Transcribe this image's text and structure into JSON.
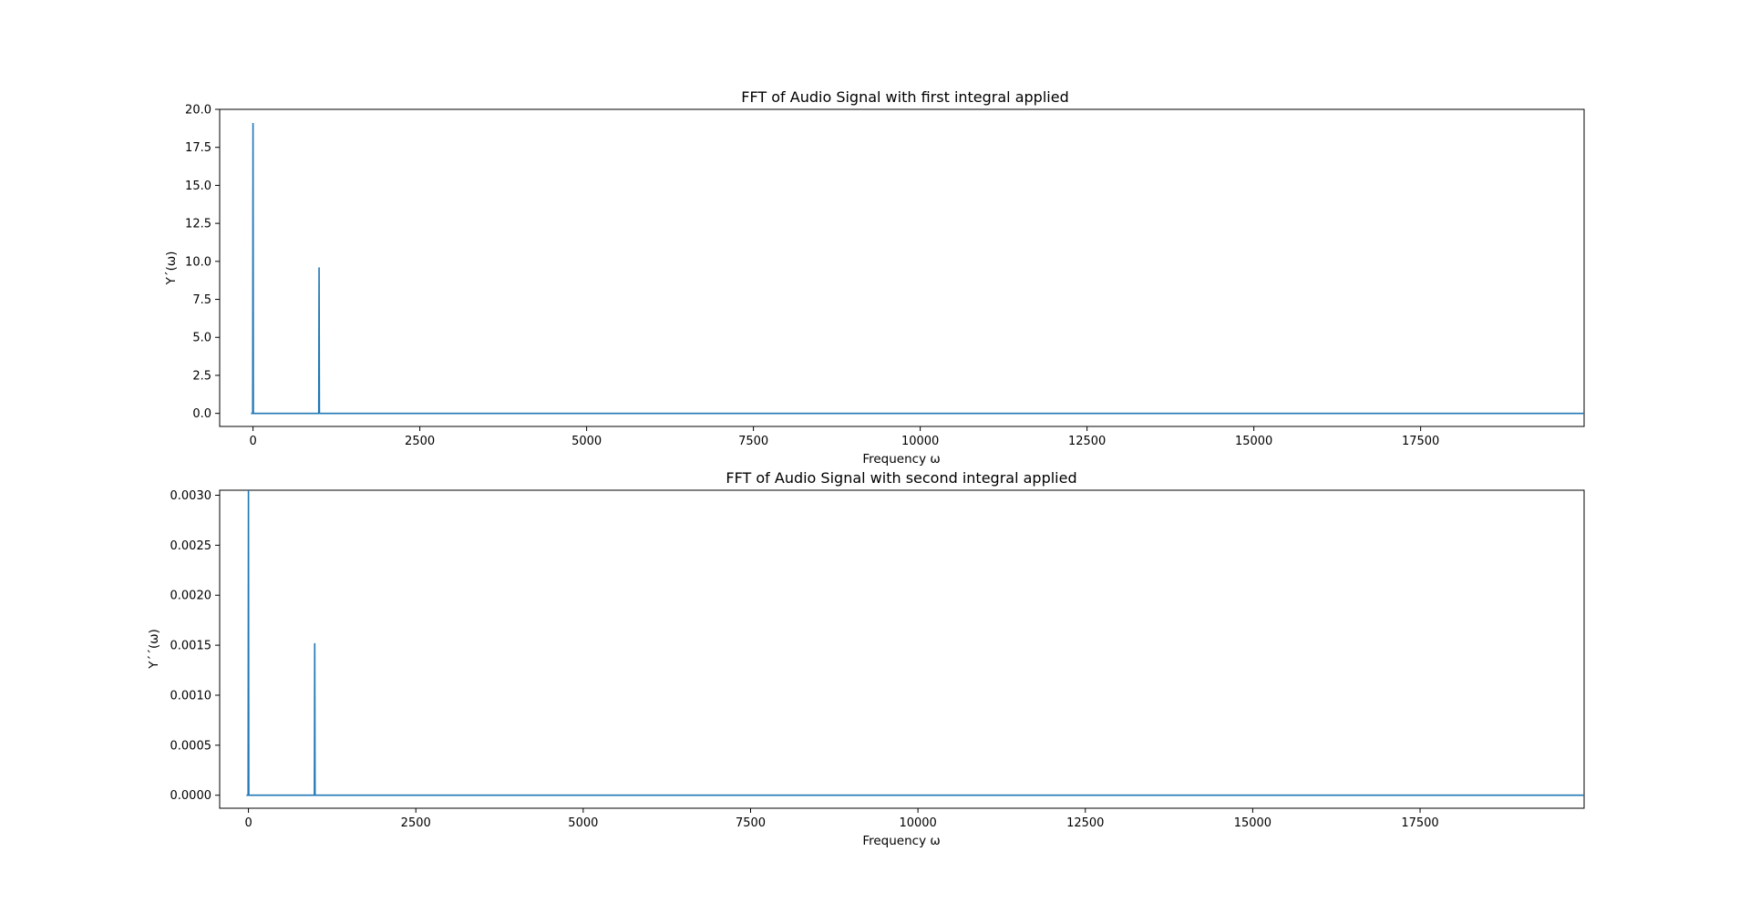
{
  "chart_data": [
    {
      "type": "line",
      "title": "FFT of Audio Signal with first integral applied",
      "xlabel": "Frequency ω",
      "ylabel": "Y´(ω)",
      "xlim": [
        -500,
        19950
      ],
      "ylim": [
        -0.86,
        20.0
      ],
      "xticks": [
        0,
        2500,
        5000,
        7500,
        10000,
        12500,
        15000,
        17500
      ],
      "xtick_labels": [
        "0",
        "2500",
        "5000",
        "7500",
        "10000",
        "12500",
        "15000",
        "17500"
      ],
      "yticks": [
        0.0,
        2.5,
        5.0,
        7.5,
        10.0,
        12.5,
        15.0,
        17.5,
        20.0
      ],
      "ytick_labels": [
        "0.0",
        "2.5",
        "5.0",
        "7.5",
        "10.0",
        "12.5",
        "15.0",
        "17.5",
        "20.0"
      ],
      "grid": false,
      "series": [
        {
          "color": "#1f77b4",
          "x": [
            -30,
            -5,
            0,
            5,
            30,
            960,
            985,
            990,
            995,
            1020,
            19950
          ],
          "y": [
            0,
            0,
            19.1,
            0,
            0,
            0,
            0,
            9.6,
            0,
            0,
            0
          ]
        }
      ]
    },
    {
      "type": "line",
      "title": "FFT of Audio Signal with second integral applied",
      "xlabel": "Frequency ω",
      "ylabel": "Y´´(ω)",
      "xlim": [
        -430,
        19950
      ],
      "ylim": [
        -0.00013,
        0.00305
      ],
      "xticks": [
        0,
        2500,
        5000,
        7500,
        10000,
        12500,
        15000,
        17500
      ],
      "xtick_labels": [
        "0",
        "2500",
        "5000",
        "7500",
        "10000",
        "12500",
        "15000",
        "17500"
      ],
      "yticks": [
        0.0,
        0.0005,
        0.001,
        0.0015,
        0.002,
        0.0025,
        0.003
      ],
      "ytick_labels": [
        "0.0000",
        "0.0005",
        "0.0010",
        "0.0015",
        "0.0020",
        "0.0025",
        "0.0030"
      ],
      "grid": false,
      "series": [
        {
          "color": "#1f77b4",
          "x": [
            -30,
            -5,
            0,
            5,
            30,
            960,
            985,
            990,
            995,
            1020,
            19950
          ],
          "y": [
            0,
            0,
            0.00305,
            0,
            0,
            0,
            0,
            0.00152,
            0,
            0,
            0
          ]
        }
      ]
    }
  ]
}
